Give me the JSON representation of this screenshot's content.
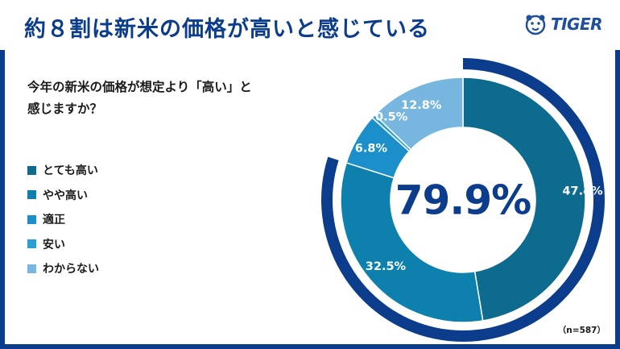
{
  "header": {
    "title": "約８割は新米の価格が高いと感じている",
    "logo_text": "TIGER"
  },
  "question": {
    "line1": "今年の新米の価格が想定より「高い」と",
    "line2": "感じますか？"
  },
  "chart_data": {
    "type": "pie",
    "variant": "donut",
    "categories": [
      "とても高い",
      "やや高い",
      "適正",
      "安い",
      "わからない"
    ],
    "values": [
      47.4,
      32.5,
      6.8,
      0.5,
      12.8
    ],
    "value_labels": [
      "47.4%",
      "32.5%",
      "6.8%",
      "0.5%",
      "12.8%"
    ],
    "colors": [
      "#0c6b8e",
      "#0d80ad",
      "#1b8fc9",
      "#2a9fd3",
      "#77b6df"
    ],
    "highlight": {
      "label": "79.9%",
      "value": 79.9,
      "color": "#0c3d8c"
    },
    "legend_position": "left",
    "sample_size": "（n=587）"
  }
}
